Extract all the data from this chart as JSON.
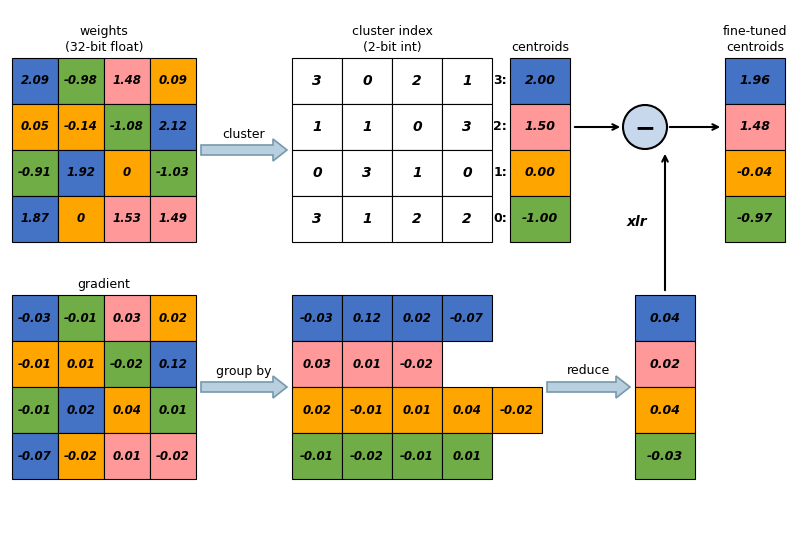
{
  "colors": {
    "blue": "#4472C4",
    "green": "#70AD47",
    "pink": "#FF9999",
    "orange": "#FFA500",
    "white": "#FFFFFF",
    "light_blue_circle": "#C8D8EC",
    "arrow_fill": "#B8CFDF",
    "arrow_edge": "#7799AA"
  },
  "weights_matrix": {
    "values": [
      [
        "2.09",
        "-0.98",
        "1.48",
        "0.09"
      ],
      [
        "0.05",
        "-0.14",
        "-1.08",
        "2.12"
      ],
      [
        "-0.91",
        "1.92",
        "0",
        "-1.03"
      ],
      [
        "1.87",
        "0",
        "1.53",
        "1.49"
      ]
    ],
    "colors": [
      [
        "blue",
        "green",
        "pink",
        "orange"
      ],
      [
        "orange",
        "orange",
        "green",
        "blue"
      ],
      [
        "green",
        "blue",
        "orange",
        "green"
      ],
      [
        "blue",
        "orange",
        "pink",
        "pink"
      ]
    ]
  },
  "cluster_matrix": {
    "values": [
      [
        "3",
        "0",
        "2",
        "1"
      ],
      [
        "1",
        "1",
        "0",
        "3"
      ],
      [
        "0",
        "3",
        "1",
        "0"
      ],
      [
        "3",
        "1",
        "2",
        "2"
      ]
    ]
  },
  "centroids": {
    "labels": [
      "3:",
      "2:",
      "1:",
      "0:"
    ],
    "values": [
      "2.00",
      "1.50",
      "0.00",
      "-1.00"
    ],
    "colors": [
      "blue",
      "pink",
      "orange",
      "green"
    ]
  },
  "fine_tuned": {
    "values": [
      "1.96",
      "1.48",
      "-0.04",
      "-0.97"
    ],
    "colors": [
      "blue",
      "pink",
      "orange",
      "green"
    ]
  },
  "gradient_matrix": {
    "values": [
      [
        "-0.03",
        "-0.01",
        "0.03",
        "0.02"
      ],
      [
        "-0.01",
        "0.01",
        "-0.02",
        "0.12"
      ],
      [
        "-0.01",
        "0.02",
        "0.04",
        "0.01"
      ],
      [
        "-0.07",
        "-0.02",
        "0.01",
        "-0.02"
      ]
    ],
    "colors": [
      [
        "blue",
        "green",
        "pink",
        "orange"
      ],
      [
        "orange",
        "orange",
        "green",
        "blue"
      ],
      [
        "green",
        "blue",
        "orange",
        "green"
      ],
      [
        "blue",
        "orange",
        "pink",
        "pink"
      ]
    ]
  },
  "grouped_matrix": {
    "rows": [
      {
        "values": [
          "-0.03",
          "0.12",
          "0.02",
          "-0.07"
        ],
        "colors": [
          "blue",
          "blue",
          "blue",
          "blue"
        ],
        "ncols": 4
      },
      {
        "values": [
          "0.03",
          "0.01",
          "-0.02"
        ],
        "colors": [
          "pink",
          "pink",
          "pink"
        ],
        "ncols": 3
      },
      {
        "values": [
          "0.02",
          "-0.01",
          "0.01",
          "0.04",
          "-0.02"
        ],
        "colors": [
          "orange",
          "orange",
          "orange",
          "orange",
          "orange"
        ],
        "ncols": 5
      },
      {
        "values": [
          "-0.01",
          "-0.02",
          "-0.01",
          "0.01"
        ],
        "colors": [
          "green",
          "green",
          "green",
          "green"
        ],
        "ncols": 4
      }
    ]
  },
  "reduced": {
    "values": [
      "0.04",
      "0.02",
      "0.04",
      "-0.03"
    ],
    "colors": [
      "blue",
      "pink",
      "orange",
      "green"
    ]
  },
  "title_weights": "weights\n(32-bit float)",
  "title_cluster": "cluster index\n(2-bit int)",
  "title_centroids": "centroids",
  "title_fine_tuned": "fine-tuned\ncentroids",
  "title_gradient": "gradient",
  "label_cluster": "cluster",
  "label_group_by": "group by",
  "label_reduce": "reduce",
  "label_xlr": "xlr"
}
